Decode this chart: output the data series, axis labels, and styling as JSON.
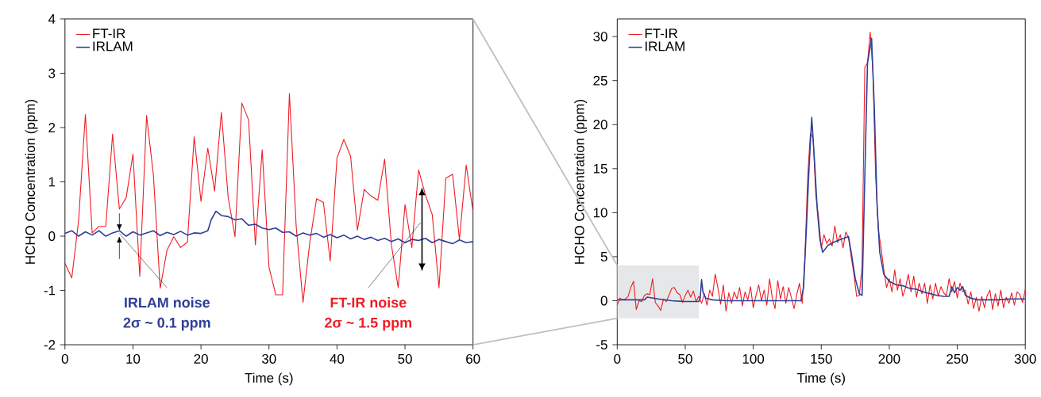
{
  "chart_data": [
    {
      "type": "line",
      "xlabel": "Time (s)",
      "ylabel": "HCHO Concentration (ppm)",
      "xlim": [
        0,
        60
      ],
      "ylim": [
        -2,
        4
      ],
      "xticks": [
        0,
        10,
        20,
        30,
        40,
        50,
        60
      ],
      "yticks": [
        -2,
        -1,
        0,
        1,
        2,
        3,
        4
      ],
      "legend": "top left",
      "annotations": [
        {
          "text": "IRLAM noise",
          "x": 8,
          "y": 0.05
        },
        "2σ ~ 0.1 ppm",
        "FT-IR noise",
        "2σ ~ 1.5 ppm"
      ],
      "series": [
        {
          "name": "FT-IR",
          "color": "#ee1c25",
          "x": [
            0,
            1,
            2,
            3,
            4,
            5,
            6,
            7,
            8,
            9,
            10,
            11,
            12,
            13,
            14,
            15,
            16,
            17,
            18,
            19,
            20,
            21,
            22,
            23,
            24,
            25,
            26,
            27,
            28,
            29,
            30,
            31,
            32,
            33,
            34,
            35,
            36,
            37,
            38,
            39,
            40,
            41,
            42,
            43,
            44,
            45,
            46,
            47,
            48,
            49,
            50,
            51,
            52,
            53,
            54,
            55,
            56,
            57,
            58,
            59,
            60
          ],
          "values": [
            -0.5,
            -0.77,
            0.28,
            2.24,
            0.06,
            0.18,
            0.18,
            1.88,
            0.5,
            0.71,
            1.51,
            -0.74,
            2.22,
            1.13,
            -0.96,
            -0.26,
            -0.01,
            -0.21,
            -0.11,
            1.83,
            0.64,
            1.62,
            0.83,
            2.28,
            0.71,
            -0.01,
            2.45,
            2.14,
            -0.16,
            1.59,
            -0.57,
            -1.08,
            -1.08,
            2.63,
            0.18,
            -1.22,
            -0.11,
            0.69,
            0.62,
            -0.46,
            1.44,
            1.78,
            1.47,
            0.11,
            0.86,
            0.74,
            0.66,
            1.42,
            -0.16,
            -0.95,
            0.58,
            -0.21,
            1.22,
            0.76,
            0.4,
            -0.95,
            1.07,
            1.14,
            -0.06,
            1.31,
            0.45
          ]
        },
        {
          "name": "IRLAM",
          "color": "#2e3f98",
          "x": [
            0,
            1,
            2,
            3,
            4,
            5,
            6,
            7,
            8,
            9,
            10,
            11,
            12,
            13,
            14,
            15,
            16,
            17,
            18,
            19,
            20,
            21,
            21.5,
            22.2,
            23,
            24,
            25,
            26,
            27,
            28,
            29,
            30,
            31,
            32,
            33,
            34,
            35,
            36,
            37,
            38,
            39,
            40,
            41,
            42,
            43,
            44,
            45,
            46,
            47,
            48,
            49,
            50,
            51,
            52,
            53,
            54,
            55,
            56,
            57,
            58,
            59,
            60
          ],
          "values": [
            0.05,
            0.1,
            0.0,
            0.08,
            0.02,
            0.1,
            0.0,
            0.06,
            0.1,
            0.0,
            0.08,
            0.02,
            0.06,
            0.1,
            0.01,
            0.07,
            0.03,
            0.09,
            0.02,
            0.06,
            0.05,
            0.1,
            0.3,
            0.46,
            0.38,
            0.36,
            0.3,
            0.32,
            0.2,
            0.22,
            0.15,
            0.12,
            0.15,
            0.07,
            0.08,
            0.0,
            0.06,
            0.02,
            0.05,
            -0.02,
            0.03,
            -0.03,
            0.02,
            -0.05,
            0.0,
            -0.06,
            -0.02,
            -0.08,
            -0.04,
            -0.1,
            -0.05,
            -0.12,
            -0.06,
            -0.08,
            -0.04,
            -0.12,
            -0.06,
            -0.1,
            -0.14,
            -0.07,
            -0.12,
            -0.1
          ]
        }
      ]
    },
    {
      "type": "line",
      "xlabel": "Time (s)",
      "ylabel": "HCHO Concentration (ppm)",
      "xlim": [
        0,
        300
      ],
      "ylim": [
        -5,
        32
      ],
      "xticks": [
        0,
        50,
        100,
        150,
        200,
        250,
        300
      ],
      "yticks": [
        -5,
        0,
        5,
        10,
        15,
        20,
        25,
        30
      ],
      "legend": "top left",
      "bands": [
        {
          "axis": "x",
          "from": 0,
          "to": 60,
          "color": "#e6e7e8"
        }
      ],
      "series": [
        {
          "name": "FT-IR",
          "color": "#ee1c25",
          "x": [
            0,
            2,
            4,
            6,
            8,
            10,
            12,
            14,
            16,
            18,
            20,
            22,
            24,
            26,
            28,
            30,
            32,
            34,
            36,
            38,
            40,
            42,
            44,
            46,
            48,
            50,
            52,
            54,
            56,
            58,
            60,
            62,
            64,
            66,
            68,
            70,
            72,
            74,
            76,
            78,
            80,
            82,
            84,
            86,
            88,
            90,
            92,
            94,
            96,
            98,
            100,
            102,
            104,
            106,
            108,
            110,
            112,
            114,
            116,
            118,
            120,
            122,
            124,
            126,
            128,
            130,
            132,
            134,
            136,
            138,
            140,
            142,
            144,
            146,
            148,
            150,
            152,
            154,
            156,
            158,
            160,
            162,
            164,
            166,
            168,
            170,
            172,
            174,
            176,
            178,
            180,
            182,
            184,
            186,
            188,
            190,
            192,
            194,
            196,
            198,
            200,
            202,
            204,
            206,
            208,
            210,
            212,
            214,
            216,
            218,
            220,
            222,
            224,
            226,
            228,
            230,
            232,
            234,
            236,
            238,
            240,
            242,
            244,
            246,
            248,
            250,
            252,
            254,
            256,
            258,
            260,
            262,
            264,
            266,
            268,
            270,
            272,
            274,
            276,
            278,
            280,
            282,
            284,
            286,
            288,
            290,
            292,
            294,
            296,
            298,
            300
          ],
          "values": [
            -0.5,
            0.3,
            0.1,
            0.2,
            0.5,
            1.5,
            2.2,
            -1.0,
            0.0,
            -0.1,
            0.6,
            0.8,
            0.7,
            2.5,
            -0.2,
            -0.6,
            -1.1,
            0.2,
            -0.1,
            0.6,
            1.4,
            1.5,
            0.9,
            0.7,
            -0.2,
            0.6,
            1.2,
            0.4,
            1.1,
            -0.1,
            0.5,
            -0.3,
            0.8,
            -0.5,
            1.2,
            0.5,
            3.0,
            1.5,
            -0.4,
            1.8,
            -1.2,
            0.9,
            -0.3,
            1.0,
            0.2,
            1.5,
            -0.6,
            1.0,
            0.1,
            1.6,
            -0.8,
            0.6,
            1.8,
            0.0,
            1.2,
            -0.5,
            2.5,
            0.3,
            -0.9,
            2.3,
            0.2,
            1.6,
            -0.3,
            1.5,
            0.4,
            -0.9,
            0.7,
            2.0,
            -0.3,
            5,
            14,
            19,
            18.5,
            12,
            9.5,
            6,
            7.5,
            6.5,
            7.0,
            6.2,
            8.5,
            6.6,
            7.5,
            6.0,
            7.8,
            7.2,
            5,
            3,
            0.5,
            0.6,
            4,
            26.5,
            27,
            30.5,
            26,
            14,
            8,
            6,
            3.5,
            1.5,
            2.5,
            1.0,
            3.5,
            1.2,
            2.5,
            0.5,
            1.5,
            3.0,
            1.0,
            2.8,
            0.4,
            2.0,
            0.8,
            2.0,
            -0.3,
            1.8,
            0.2,
            2.0,
            0.5,
            1.6,
            0.9,
            0.6,
            2.5,
            1.0,
            2.2,
            0.3,
            2.0,
            1.0,
            1.2,
            -0.4,
            1.0,
            -0.9,
            0.4,
            -1.2,
            0.5,
            -0.8,
            0.6,
            1.2,
            -1.0,
            0.8,
            -0.6,
            1.2,
            -0.8,
            0.4,
            -0.3,
            0.9,
            -0.5,
            1.0,
            0.7,
            -0.2,
            1.3
          ]
        },
        {
          "name": "IRLAM",
          "color": "#2e3f98",
          "x": [
            0,
            10,
            20,
            22,
            26,
            30,
            40,
            50,
            60,
            61,
            62,
            63,
            65,
            70,
            80,
            100,
            120,
            135,
            137,
            139,
            141,
            143,
            145,
            147,
            149,
            151,
            155,
            160,
            165,
            170,
            172,
            175,
            178,
            180,
            182,
            184,
            187,
            189,
            191,
            193,
            196,
            200,
            205,
            210,
            215,
            220,
            225,
            230,
            235,
            240,
            244,
            246,
            248,
            250,
            252,
            254,
            256,
            260,
            265,
            270,
            280,
            290,
            300
          ],
          "values": [
            0.1,
            0.1,
            0.1,
            0.4,
            0.3,
            0.2,
            0.0,
            -0.1,
            -0.1,
            0.3,
            2.4,
            1.0,
            0.3,
            0.1,
            0.0,
            0.0,
            0.0,
            0.0,
            1.5,
            8,
            15,
            20.8,
            16,
            10.5,
            7,
            5.5,
            6.3,
            6.7,
            7.0,
            7.3,
            5.5,
            2.5,
            0.8,
            0.6,
            14,
            27,
            29.8,
            22,
            11,
            5.5,
            3.0,
            2.2,
            1.8,
            1.7,
            1.4,
            1.3,
            1.0,
            0.8,
            0.6,
            0.5,
            0.5,
            1.6,
            0.9,
            1.5,
            1.2,
            1.6,
            0.6,
            0.3,
            0.1,
            0.1,
            0.1,
            0.2,
            0.2
          ]
        }
      ]
    }
  ]
}
